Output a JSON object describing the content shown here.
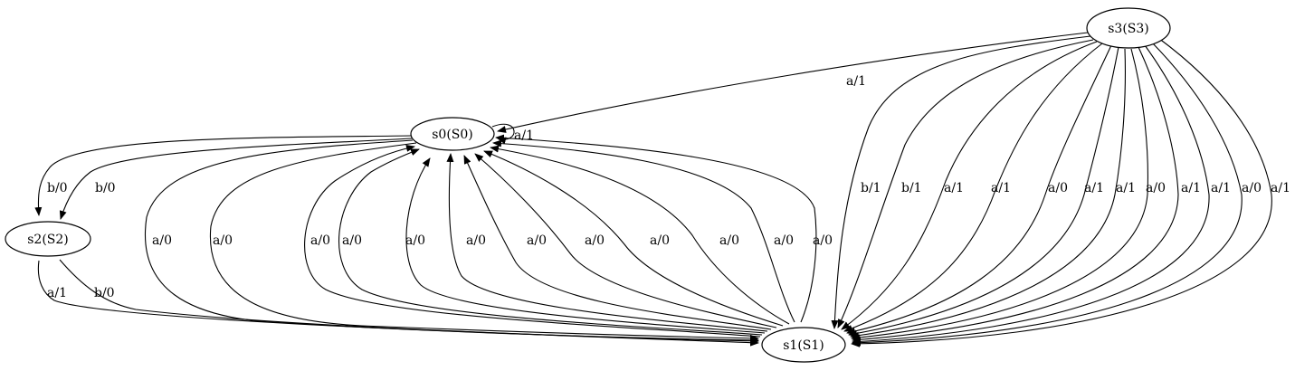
{
  "nodes": [
    {
      "id": "s0",
      "label": "s0(S0)"
    },
    {
      "id": "s1",
      "label": "s1(S1)"
    },
    {
      "id": "s2",
      "label": "s2(S2)"
    },
    {
      "id": "s3",
      "label": "s3(S3)"
    }
  ],
  "edges": [
    {
      "from": "s0",
      "to": "s0",
      "label": "a/1"
    },
    {
      "from": "s0",
      "to": "s2",
      "label": "b/0"
    },
    {
      "from": "s0",
      "to": "s2",
      "label": "b/0"
    },
    {
      "from": "s2",
      "to": "s1",
      "label": "a/1"
    },
    {
      "from": "s2",
      "to": "s1",
      "label": "b/0"
    },
    {
      "from": "s0",
      "to": "s1",
      "label": "a/0"
    },
    {
      "from": "s0",
      "to": "s1",
      "label": "a/0"
    },
    {
      "from": "s1",
      "to": "s0",
      "label": "a/0"
    },
    {
      "from": "s1",
      "to": "s0",
      "label": "a/0"
    },
    {
      "from": "s1",
      "to": "s0",
      "label": "a/0"
    },
    {
      "from": "s1",
      "to": "s0",
      "label": "a/0"
    },
    {
      "from": "s1",
      "to": "s0",
      "label": "a/0"
    },
    {
      "from": "s1",
      "to": "s0",
      "label": "a/0"
    },
    {
      "from": "s1",
      "to": "s0",
      "label": "a/0"
    },
    {
      "from": "s1",
      "to": "s0",
      "label": "a/0"
    },
    {
      "from": "s1",
      "to": "s0",
      "label": "a/0"
    },
    {
      "from": "s1",
      "to": "s0",
      "label": "a/0"
    },
    {
      "from": "s3",
      "to": "s0",
      "label": "a/1"
    },
    {
      "from": "s3",
      "to": "s1",
      "label": "b/1"
    },
    {
      "from": "s3",
      "to": "s1",
      "label": "b/1"
    },
    {
      "from": "s3",
      "to": "s1",
      "label": "a/1"
    },
    {
      "from": "s3",
      "to": "s1",
      "label": "a/1"
    },
    {
      "from": "s3",
      "to": "s1",
      "label": "a/0"
    },
    {
      "from": "s3",
      "to": "s1",
      "label": "a/1"
    },
    {
      "from": "s3",
      "to": "s1",
      "label": "a/1"
    },
    {
      "from": "s3",
      "to": "s1",
      "label": "a/0"
    },
    {
      "from": "s3",
      "to": "s1",
      "label": "a/1"
    },
    {
      "from": "s3",
      "to": "s1",
      "label": "a/1"
    },
    {
      "from": "s3",
      "to": "s1",
      "label": "a/0"
    },
    {
      "from": "s3",
      "to": "s1",
      "label": "a/1"
    }
  ]
}
